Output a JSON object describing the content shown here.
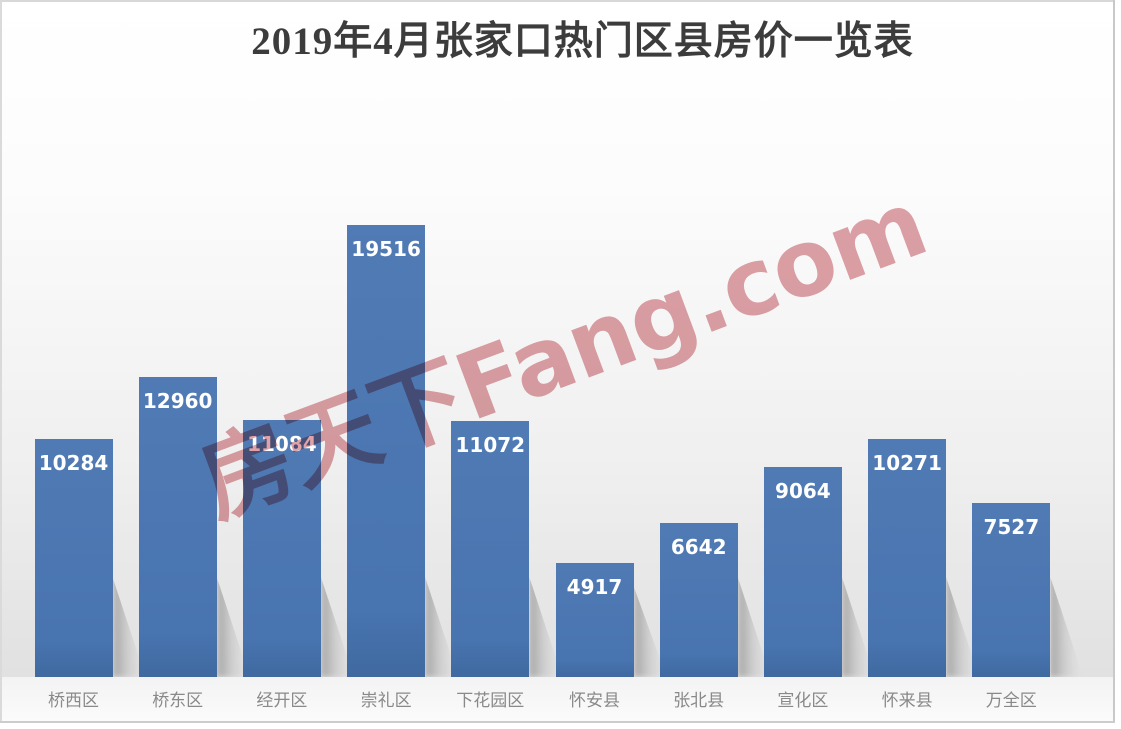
{
  "chart_data": {
    "type": "bar",
    "title": "2019年4月张家口热门区县房价一览表",
    "categories": [
      "桥西区",
      "桥东区",
      "经开区",
      "崇礼区",
      "下花园区",
      "怀安县",
      "张北县",
      "宣化区",
      "怀来县",
      "万全区"
    ],
    "values": [
      10284,
      12960,
      11084,
      19516,
      11072,
      4917,
      6642,
      9064,
      10271,
      7527
    ],
    "xlabel": "",
    "ylabel": "",
    "ylim": [
      0,
      19516
    ],
    "grid": false,
    "legend": "none",
    "axes_shown": false,
    "value_labels": "inside-top",
    "bar_color": "#4874b0",
    "value_label_color": "#ffffff",
    "category_label_color": "#898989",
    "title_color": "#3c3c3c"
  },
  "watermark": {
    "text": "房天下Fang.com",
    "color": "#dfa2a7"
  }
}
